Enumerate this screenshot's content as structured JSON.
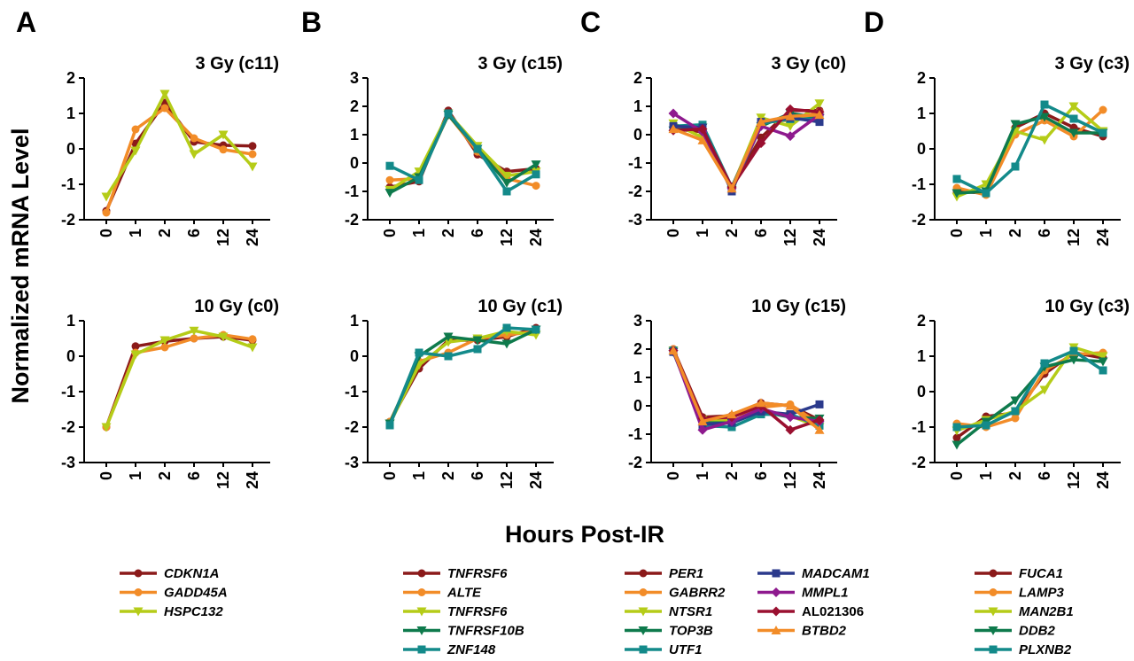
{
  "figure": {
    "ylabel": "Normalized mRNA Level",
    "xlabel": "Hours Post-IR"
  },
  "colors": {
    "darkred": "#8B1A1A",
    "orange": "#F28C28",
    "yellowgreen": "#B5CC18",
    "green": "#0E7A4C",
    "teal": "#138A8A",
    "navy": "#2B3A8C",
    "purple": "#8E1A8E",
    "crimson": "#9A1030"
  },
  "chart_data": [
    {
      "id": "A-top",
      "panel": "A",
      "type": "line",
      "title": "3 Gy (c11)",
      "categories": [
        "0",
        "1",
        "2",
        "6",
        "12",
        "24"
      ],
      "ylim": [
        -2,
        2
      ],
      "yticks": [
        "-2",
        "-1",
        "0",
        "1",
        "2"
      ],
      "series": [
        {
          "name": "CDKN1A",
          "color": "#8B1A1A",
          "marker": "circle",
          "values": [
            -1.75,
            0.15,
            1.3,
            0.2,
            0.1,
            0.08
          ]
        },
        {
          "name": "GADD45A",
          "color": "#F28C28",
          "marker": "circle",
          "values": [
            -1.8,
            0.55,
            1.15,
            0.3,
            -0.02,
            -0.15
          ]
        },
        {
          "name": "HSPC132",
          "color": "#B5CC18",
          "marker": "triangle-down",
          "values": [
            -1.35,
            -0.05,
            1.55,
            -0.15,
            0.4,
            -0.5
          ]
        }
      ]
    },
    {
      "id": "A-bot",
      "panel": "A",
      "type": "line",
      "title": "10 Gy (c0)",
      "categories": [
        "0",
        "1",
        "2",
        "6",
        "12",
        "24"
      ],
      "ylim": [
        -3,
        1
      ],
      "yticks": [
        "-3",
        "-2",
        "-1",
        "0",
        "1"
      ],
      "series": [
        {
          "name": "CDKN1A",
          "color": "#8B1A1A",
          "marker": "circle",
          "values": [
            -2.0,
            0.28,
            0.42,
            0.5,
            0.55,
            0.45
          ]
        },
        {
          "name": "GADD45A",
          "color": "#F28C28",
          "marker": "circle",
          "values": [
            -2.0,
            0.1,
            0.25,
            0.5,
            0.6,
            0.48
          ]
        },
        {
          "name": "HSPC132",
          "color": "#B5CC18",
          "marker": "triangle-down",
          "values": [
            -2.0,
            0.05,
            0.45,
            0.72,
            0.55,
            0.25
          ]
        }
      ]
    },
    {
      "id": "B-top",
      "panel": "B",
      "type": "line",
      "title": "3 Gy (c15)",
      "categories": [
        "0",
        "1",
        "2",
        "6",
        "12",
        "24"
      ],
      "ylim": [
        -2,
        3
      ],
      "yticks": [
        "-2",
        "-1",
        "0",
        "1",
        "2",
        "3"
      ],
      "series": [
        {
          "name": "TNFRSF6",
          "color": "#8B1A1A",
          "marker": "circle",
          "values": [
            -0.85,
            -0.65,
            1.85,
            0.3,
            -0.3,
            -0.2
          ]
        },
        {
          "name": "ALTE",
          "color": "#F28C28",
          "marker": "circle",
          "values": [
            -0.6,
            -0.55,
            1.7,
            0.4,
            -0.55,
            -0.8
          ]
        },
        {
          "name": "TNFRSF6",
          "color": "#B5CC18",
          "marker": "triangle-down",
          "values": [
            -0.95,
            -0.3,
            1.75,
            0.6,
            -0.45,
            -0.3
          ]
        },
        {
          "name": "TNFRSF10B",
          "color": "#0E7A4C",
          "marker": "triangle-down",
          "values": [
            -1.05,
            -0.5,
            1.7,
            0.5,
            -0.7,
            -0.05
          ]
        },
        {
          "name": "ZNF148",
          "color": "#138A8A",
          "marker": "square",
          "values": [
            -0.1,
            -0.6,
            1.75,
            0.5,
            -1.0,
            -0.4
          ]
        }
      ]
    },
    {
      "id": "B-bot",
      "panel": "B",
      "type": "line",
      "title": "10 Gy (c1)",
      "categories": [
        "0",
        "1",
        "2",
        "6",
        "12",
        "24"
      ],
      "ylim": [
        -3,
        1
      ],
      "yticks": [
        "-3",
        "-2",
        "-1",
        "0",
        "1"
      ],
      "series": [
        {
          "name": "TNFRSF6",
          "color": "#8B1A1A",
          "marker": "circle",
          "values": [
            -1.85,
            -0.35,
            0.45,
            0.45,
            0.55,
            0.8
          ]
        },
        {
          "name": "ALTE",
          "color": "#F28C28",
          "marker": "circle",
          "values": [
            -1.85,
            -0.15,
            0.1,
            0.5,
            0.6,
            0.7
          ]
        },
        {
          "name": "TNFRSF6",
          "color": "#B5CC18",
          "marker": "triangle-down",
          "values": [
            -1.9,
            -0.25,
            0.4,
            0.5,
            0.7,
            0.6
          ]
        },
        {
          "name": "TNFRSF10B",
          "color": "#0E7A4C",
          "marker": "triangle-down",
          "values": [
            -1.9,
            0.0,
            0.55,
            0.45,
            0.35,
            0.75
          ]
        },
        {
          "name": "ZNF148",
          "color": "#138A8A",
          "marker": "square",
          "values": [
            -1.95,
            0.1,
            0.0,
            0.2,
            0.8,
            0.75
          ]
        }
      ]
    },
    {
      "id": "C-top",
      "panel": "C",
      "type": "line",
      "title": "3 Gy (c0)",
      "categories": [
        "0",
        "1",
        "2",
        "6",
        "12",
        "24"
      ],
      "ylim": [
        -3,
        2
      ],
      "yticks": [
        "-3",
        "-2",
        "-1",
        "0",
        "1",
        "2"
      ],
      "series": [
        {
          "name": "PER1",
          "color": "#8B1A1A",
          "marker": "circle",
          "values": [
            0.2,
            0.1,
            -1.85,
            -0.1,
            0.85,
            0.85
          ]
        },
        {
          "name": "GABRR2",
          "color": "#F28C28",
          "marker": "circle",
          "values": [
            0.3,
            0.2,
            -1.85,
            0.5,
            0.5,
            0.8
          ]
        },
        {
          "name": "NTSR1",
          "color": "#B5CC18",
          "marker": "triangle-down",
          "values": [
            0.4,
            -0.1,
            -1.9,
            0.6,
            0.3,
            1.1
          ]
        },
        {
          "name": "TOP3B",
          "color": "#0E7A4C",
          "marker": "triangle-down",
          "values": [
            0.15,
            0.25,
            -1.95,
            0.3,
            0.75,
            0.6
          ]
        },
        {
          "name": "UTF1",
          "color": "#138A8A",
          "marker": "square",
          "values": [
            0.3,
            0.35,
            -1.85,
            0.4,
            0.55,
            0.55
          ]
        },
        {
          "name": "MADCAM1",
          "color": "#2B3A8C",
          "marker": "square",
          "values": [
            0.3,
            0.25,
            -2.0,
            0.45,
            0.6,
            0.45
          ]
        },
        {
          "name": "MMPL1",
          "color": "#8E1A8E",
          "marker": "diamond",
          "values": [
            0.75,
            0.1,
            -1.9,
            0.3,
            -0.05,
            0.7
          ]
        },
        {
          "name": "AL021306",
          "color": "#9A1030",
          "marker": "diamond",
          "values": [
            0.15,
            0.2,
            -1.85,
            -0.3,
            0.9,
            0.8
          ]
        },
        {
          "name": "BTBD2",
          "color": "#F28C28",
          "marker": "triangle-up",
          "values": [
            0.2,
            -0.2,
            -1.9,
            0.45,
            0.65,
            0.7
          ]
        }
      ]
    },
    {
      "id": "C-bot",
      "panel": "C",
      "type": "line",
      "title": "10 Gy (c15)",
      "categories": [
        "0",
        "1",
        "2",
        "6",
        "12",
        "24"
      ],
      "ylim": [
        -2,
        3
      ],
      "yticks": [
        "-2",
        "-1",
        "0",
        "1",
        "2",
        "3"
      ],
      "series": [
        {
          "name": "PER1",
          "color": "#8B1A1A",
          "marker": "circle",
          "values": [
            2.0,
            -0.4,
            -0.35,
            0.1,
            0.0,
            -0.5
          ]
        },
        {
          "name": "GABRR2",
          "color": "#F28C28",
          "marker": "circle",
          "values": [
            2.0,
            -0.6,
            -0.4,
            -0.05,
            0.05,
            -0.65
          ]
        },
        {
          "name": "NTSR1",
          "color": "#B5CC18",
          "marker": "triangle-down",
          "values": [
            1.95,
            -0.5,
            -0.55,
            -0.2,
            -0.35,
            -0.75
          ]
        },
        {
          "name": "TOP3B",
          "color": "#0E7A4C",
          "marker": "triangle-down",
          "values": [
            1.9,
            -0.6,
            -0.6,
            -0.2,
            -0.4,
            -0.45
          ]
        },
        {
          "name": "UTF1",
          "color": "#138A8A",
          "marker": "square",
          "values": [
            1.95,
            -0.7,
            -0.75,
            -0.3,
            -0.3,
            -0.7
          ]
        },
        {
          "name": "MADCAM1",
          "color": "#2B3A8C",
          "marker": "square",
          "values": [
            1.9,
            -0.65,
            -0.6,
            -0.2,
            -0.3,
            0.05
          ]
        },
        {
          "name": "MMPL1",
          "color": "#8E1A8E",
          "marker": "diamond",
          "values": [
            1.95,
            -0.85,
            -0.55,
            -0.1,
            -0.4,
            -0.55
          ]
        },
        {
          "name": "AL021306",
          "color": "#9A1030",
          "marker": "diamond",
          "values": [
            1.95,
            -0.45,
            -0.4,
            0.0,
            -0.85,
            -0.5
          ]
        },
        {
          "name": "BTBD2",
          "color": "#F28C28",
          "marker": "triangle-up",
          "values": [
            1.95,
            -0.55,
            -0.3,
            0.1,
            0.0,
            -0.85
          ]
        }
      ]
    },
    {
      "id": "D-top",
      "panel": "D",
      "type": "line",
      "title": "3 Gy (c3)",
      "categories": [
        "0",
        "1",
        "2",
        "6",
        "12",
        "24"
      ],
      "ylim": [
        -2,
        2
      ],
      "yticks": [
        "-2",
        "-1",
        "0",
        "1",
        "2"
      ],
      "series": [
        {
          "name": "FUCA1",
          "color": "#8B1A1A",
          "marker": "circle",
          "values": [
            -1.2,
            -1.25,
            0.6,
            1.0,
            0.6,
            0.35
          ]
        },
        {
          "name": "LAMP3",
          "color": "#F28C28",
          "marker": "circle",
          "values": [
            -1.1,
            -1.3,
            0.4,
            0.8,
            0.35,
            1.1
          ]
        },
        {
          "name": "MAN2B1",
          "color": "#B5CC18",
          "marker": "triangle-down",
          "values": [
            -1.35,
            -1.0,
            0.5,
            0.25,
            1.2,
            0.5
          ]
        },
        {
          "name": "DDB2",
          "color": "#0E7A4C",
          "marker": "triangle-down",
          "values": [
            -1.25,
            -1.2,
            0.7,
            0.9,
            0.45,
            0.45
          ]
        },
        {
          "name": "PLXNB2",
          "color": "#138A8A",
          "marker": "square",
          "values": [
            -0.85,
            -1.25,
            -0.5,
            1.25,
            0.85,
            0.45
          ]
        }
      ]
    },
    {
      "id": "D-bot",
      "panel": "D",
      "type": "line",
      "title": "10 Gy (c3)",
      "categories": [
        "0",
        "1",
        "2",
        "6",
        "12",
        "24"
      ],
      "ylim": [
        -2,
        2
      ],
      "yticks": [
        "-2",
        "-1",
        "0",
        "1",
        "2"
      ],
      "series": [
        {
          "name": "FUCA1",
          "color": "#8B1A1A",
          "marker": "circle",
          "values": [
            -1.3,
            -0.7,
            -0.6,
            0.5,
            1.1,
            0.95
          ]
        },
        {
          "name": "LAMP3",
          "color": "#F28C28",
          "marker": "circle",
          "values": [
            -0.9,
            -1.0,
            -0.75,
            0.6,
            1.05,
            1.1
          ]
        },
        {
          "name": "MAN2B1",
          "color": "#B5CC18",
          "marker": "triangle-down",
          "values": [
            -1.1,
            -0.8,
            -0.55,
            0.05,
            1.25,
            1.0
          ]
        },
        {
          "name": "DDB2",
          "color": "#0E7A4C",
          "marker": "triangle-down",
          "values": [
            -1.5,
            -0.85,
            -0.25,
            0.7,
            0.9,
            0.85
          ]
        },
        {
          "name": "PLXNB2",
          "color": "#138A8A",
          "marker": "square",
          "values": [
            -1.0,
            -0.95,
            -0.55,
            0.8,
            1.15,
            0.6
          ]
        }
      ]
    }
  ],
  "legends": [
    {
      "panel": "A",
      "items": [
        {
          "name": "CDKN1A",
          "color": "#8B1A1A",
          "marker": "circle",
          "italic": true
        },
        {
          "name": "GADD45A",
          "color": "#F28C28",
          "marker": "circle",
          "italic": true
        },
        {
          "name": "HSPC132",
          "color": "#B5CC18",
          "marker": "triangle-down",
          "italic": true
        }
      ]
    },
    {
      "panel": "B",
      "items": [
        {
          "name": "TNFRSF6",
          "color": "#8B1A1A",
          "marker": "circle",
          "italic": true
        },
        {
          "name": "ALTE",
          "color": "#F28C28",
          "marker": "circle",
          "italic": true
        },
        {
          "name": "TNFRSF6",
          "color": "#B5CC18",
          "marker": "triangle-down",
          "italic": true
        },
        {
          "name": "TNFRSF10B",
          "color": "#0E7A4C",
          "marker": "triangle-down",
          "italic": true
        },
        {
          "name": "ZNF148",
          "color": "#138A8A",
          "marker": "square",
          "italic": true
        }
      ]
    },
    {
      "panel": "C1",
      "items": [
        {
          "name": "PER1",
          "color": "#8B1A1A",
          "marker": "circle",
          "italic": true
        },
        {
          "name": "GABRR2",
          "color": "#F28C28",
          "marker": "circle",
          "italic": true
        },
        {
          "name": "NTSR1",
          "color": "#B5CC18",
          "marker": "triangle-down",
          "italic": true
        },
        {
          "name": "TOP3B",
          "color": "#0E7A4C",
          "marker": "triangle-down",
          "italic": true
        },
        {
          "name": "UTF1",
          "color": "#138A8A",
          "marker": "square",
          "italic": true
        }
      ]
    },
    {
      "panel": "C2",
      "items": [
        {
          "name": "MADCAM1",
          "color": "#2B3A8C",
          "marker": "square",
          "italic": true
        },
        {
          "name": "MMPL1",
          "color": "#8E1A8E",
          "marker": "diamond",
          "italic": true
        },
        {
          "name": "AL021306",
          "color": "#9A1030",
          "marker": "diamond",
          "italic": false
        },
        {
          "name": "BTBD2",
          "color": "#F28C28",
          "marker": "triangle-up",
          "italic": true
        }
      ]
    },
    {
      "panel": "D",
      "items": [
        {
          "name": "FUCA1",
          "color": "#8B1A1A",
          "marker": "circle",
          "italic": true
        },
        {
          "name": "LAMP3",
          "color": "#F28C28",
          "marker": "circle",
          "italic": true
        },
        {
          "name": "MAN2B1",
          "color": "#B5CC18",
          "marker": "triangle-down",
          "italic": true
        },
        {
          "name": "DDB2",
          "color": "#0E7A4C",
          "marker": "triangle-down",
          "italic": true
        },
        {
          "name": "PLXNB2",
          "color": "#138A8A",
          "marker": "square",
          "italic": true
        }
      ]
    }
  ]
}
